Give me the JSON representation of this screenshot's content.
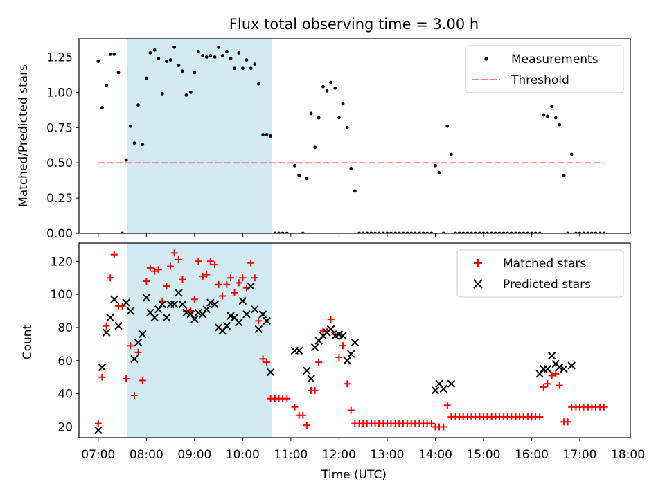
{
  "figure": {
    "title": "Flux total observing time = 3.00 h",
    "xlabel": "Time (UTC)",
    "span_color": "#add8e6",
    "span_label_start": "07:36",
    "span_label_end": "10:36"
  },
  "chart_data": [
    {
      "type": "scatter",
      "ylabel": "Matched/Predicted stars",
      "xlim": [
        6.6,
        18.05
      ],
      "ylim": [
        0,
        1.38
      ],
      "yticks": [
        "0.00",
        "0.25",
        "0.50",
        "0.75",
        "1.00",
        "1.25"
      ],
      "ytick_values": [
        0,
        0.25,
        0.5,
        0.75,
        1.0,
        1.25
      ],
      "legend_placement": "top-right",
      "threshold": {
        "name": "Threshold",
        "value": 0.5,
        "x_range": [
          7.0,
          17.5
        ],
        "color": "#ff8080"
      },
      "series": [
        {
          "name": "Measurements",
          "color": "#000000",
          "x": [
            7.0,
            7.08,
            7.17,
            7.25,
            7.33,
            7.42,
            7.5,
            7.58,
            7.67,
            7.75,
            7.83,
            7.92,
            8.0,
            8.08,
            8.17,
            8.25,
            8.33,
            8.42,
            8.5,
            8.58,
            8.67,
            8.75,
            8.83,
            8.92,
            9.0,
            9.08,
            9.17,
            9.25,
            9.33,
            9.42,
            9.5,
            9.58,
            9.67,
            9.75,
            9.83,
            9.92,
            10.0,
            10.08,
            10.17,
            10.25,
            10.33,
            10.42,
            10.5,
            10.58,
            10.67,
            10.75,
            10.83,
            10.92,
            11.08,
            11.17,
            11.25,
            11.33,
            11.42,
            11.5,
            11.58,
            11.67,
            11.75,
            11.83,
            11.92,
            12.0,
            12.08,
            12.17,
            12.25,
            12.33,
            12.42,
            12.5,
            12.58,
            12.67,
            12.75,
            12.83,
            12.92,
            13.0,
            13.08,
            13.17,
            13.25,
            13.33,
            13.42,
            13.5,
            13.58,
            13.67,
            13.75,
            13.83,
            13.92,
            14.0,
            14.08,
            14.17,
            14.25,
            14.33,
            14.42,
            14.5,
            14.58,
            14.67,
            14.75,
            14.83,
            14.92,
            15.0,
            15.08,
            15.17,
            15.25,
            15.33,
            15.42,
            15.5,
            15.58,
            15.67,
            15.75,
            15.83,
            15.92,
            16.0,
            16.08,
            16.17,
            16.25,
            16.33,
            16.42,
            16.5,
            16.58,
            16.67,
            16.75,
            16.83,
            16.92,
            17.0,
            17.08,
            17.17,
            17.25,
            17.33,
            17.42,
            17.5
          ],
          "y": [
            1.22,
            0.89,
            1.05,
            1.27,
            1.27,
            1.14,
            0.0,
            0.52,
            0.76,
            0.64,
            0.91,
            0.63,
            1.1,
            1.28,
            1.3,
            1.24,
            0.99,
            1.22,
            1.23,
            1.32,
            1.19,
            1.15,
            0.98,
            1.0,
            1.14,
            1.29,
            1.26,
            1.25,
            1.26,
            1.25,
            1.32,
            1.26,
            1.29,
            1.24,
            1.17,
            1.28,
            1.17,
            1.23,
            1.17,
            1.2,
            1.06,
            0.7,
            0.7,
            0.69,
            0.0,
            0.0,
            0.0,
            0.0,
            0.48,
            0.41,
            0.0,
            0.39,
            0.85,
            0.61,
            0.82,
            1.04,
            1.01,
            1.07,
            1.03,
            0.82,
            0.92,
            0.75,
            0.46,
            0.3,
            0.0,
            0.0,
            0.0,
            0.0,
            0.0,
            0.0,
            0.0,
            0.0,
            0.0,
            0.0,
            0.0,
            0.0,
            0.0,
            0.0,
            0.0,
            0.0,
            0.0,
            0.0,
            0.0,
            0.48,
            0.43,
            0.0,
            0.76,
            0.56,
            0.0,
            0.0,
            0.0,
            0.0,
            0.0,
            0.0,
            0.0,
            0.0,
            0.0,
            0.0,
            0.0,
            0.0,
            0.0,
            0.0,
            0.0,
            0.0,
            0.0,
            0.0,
            0.0,
            0.0,
            0.0,
            0.0,
            0.84,
            0.83,
            0.9,
            0.82,
            0.77,
            0.41,
            0.0,
            0.56,
            0.0,
            0.0,
            0.0,
            0.0,
            0.0,
            0.0,
            0.0,
            0.0
          ]
        }
      ]
    },
    {
      "type": "scatter",
      "ylabel": "Count",
      "xlim": [
        6.6,
        18.05
      ],
      "ylim": [
        13.5,
        131
      ],
      "yticks": [
        "20",
        "40",
        "60",
        "80",
        "100",
        "120"
      ],
      "ytick_values": [
        20,
        40,
        60,
        80,
        100,
        120
      ],
      "xticks": [
        "07:00",
        "08:00",
        "09:00",
        "10:00",
        "11:00",
        "12:00",
        "13:00",
        "14:00",
        "15:00",
        "16:00",
        "17:00",
        "18:00"
      ],
      "xtick_values": [
        7,
        8,
        9,
        10,
        11,
        12,
        13,
        14,
        15,
        16,
        17,
        18
      ],
      "legend_placement": "top-right",
      "series": [
        {
          "name": "Matched stars",
          "marker": "+",
          "color": "#ff0000",
          "x": [
            7.0,
            7.08,
            7.17,
            7.25,
            7.33,
            7.42,
            7.5,
            7.58,
            7.67,
            7.75,
            7.83,
            7.92,
            8.0,
            8.08,
            8.17,
            8.25,
            8.33,
            8.42,
            8.5,
            8.58,
            8.67,
            8.75,
            8.83,
            8.92,
            9.0,
            9.08,
            9.17,
            9.25,
            9.33,
            9.42,
            9.5,
            9.58,
            9.67,
            9.75,
            9.83,
            9.92,
            10.0,
            10.08,
            10.17,
            10.25,
            10.33,
            10.42,
            10.5,
            10.58,
            10.67,
            10.75,
            10.83,
            10.92,
            11.08,
            11.17,
            11.25,
            11.33,
            11.42,
            11.5,
            11.58,
            11.67,
            11.75,
            11.83,
            11.92,
            12.0,
            12.08,
            12.17,
            12.25,
            12.33,
            12.42,
            12.5,
            12.58,
            12.67,
            12.75,
            12.83,
            12.92,
            13.0,
            13.08,
            13.17,
            13.25,
            13.33,
            13.42,
            13.5,
            13.58,
            13.67,
            13.75,
            13.83,
            13.92,
            14.0,
            14.08,
            14.17,
            14.25,
            14.33,
            14.42,
            14.5,
            14.58,
            14.67,
            14.75,
            14.83,
            14.92,
            15.0,
            15.08,
            15.17,
            15.25,
            15.33,
            15.42,
            15.5,
            15.58,
            15.67,
            15.75,
            15.83,
            15.92,
            16.0,
            16.08,
            16.17,
            16.25,
            16.33,
            16.42,
            16.5,
            16.58,
            16.67,
            16.75,
            16.83,
            16.92,
            17.0,
            17.08,
            17.17,
            17.25,
            17.33,
            17.42,
            17.5
          ],
          "y": [
            22,
            50,
            81,
            110,
            124,
            93,
            93,
            49,
            69,
            39,
            65,
            48,
            108,
            116,
            114,
            115,
            96,
            105,
            117,
            125,
            121,
            109,
            90,
            90,
            97,
            120,
            111,
            112,
            120,
            118,
            106,
            99,
            106,
            110,
            101,
            107,
            110,
            104,
            119,
            110,
            84,
            61,
            59,
            37,
            37,
            37,
            37,
            37,
            32,
            27,
            27,
            21,
            42,
            42,
            59,
            78,
            78,
            85,
            76,
            62,
            69,
            46,
            30,
            22,
            22,
            22,
            22,
            22,
            22,
            22,
            22,
            22,
            22,
            22,
            22,
            22,
            22,
            22,
            22,
            22,
            22,
            22,
            22,
            20,
            20,
            20,
            33,
            26,
            26,
            26,
            26,
            26,
            26,
            26,
            26,
            26,
            26,
            26,
            26,
            26,
            26,
            26,
            26,
            26,
            26,
            26,
            26,
            26,
            26,
            26,
            44,
            46,
            51,
            52,
            45,
            23,
            23,
            32,
            32,
            32,
            32,
            32,
            32,
            32,
            32,
            32
          ]
        },
        {
          "name": "Predicted stars",
          "marker": "x",
          "color": "#000000",
          "x": [
            7.0,
            7.08,
            7.17,
            7.25,
            7.33,
            7.42,
            7.58,
            7.67,
            7.75,
            7.83,
            7.92,
            8.0,
            8.08,
            8.17,
            8.25,
            8.33,
            8.42,
            8.5,
            8.58,
            8.67,
            8.75,
            8.83,
            8.92,
            9.0,
            9.08,
            9.17,
            9.25,
            9.33,
            9.42,
            9.5,
            9.58,
            9.67,
            9.75,
            9.83,
            9.92,
            10.0,
            10.08,
            10.17,
            10.25,
            10.33,
            10.42,
            10.5,
            10.58,
            11.08,
            11.17,
            11.33,
            11.42,
            11.5,
            11.58,
            11.67,
            11.75,
            11.83,
            11.92,
            12.0,
            12.08,
            12.17,
            12.25,
            12.33,
            14.0,
            14.08,
            14.17,
            14.33,
            16.17,
            16.25,
            16.33,
            16.42,
            16.5,
            16.58,
            16.67,
            16.83
          ],
          "y": [
            18,
            56,
            77,
            86,
            97,
            81,
            95,
            90,
            61,
            71,
            76,
            98,
            89,
            86,
            91,
            94,
            86,
            94,
            94,
            101,
            94,
            89,
            88,
            85,
            89,
            88,
            91,
            95,
            94,
            80,
            78,
            81,
            87,
            86,
            83,
            96,
            88,
            105,
            91,
            79,
            88,
            84,
            53,
            66,
            66,
            54,
            49,
            68,
            72,
            75,
            77,
            79,
            75,
            76,
            75,
            60,
            64,
            71,
            42,
            46,
            43,
            46,
            52,
            55,
            55,
            63,
            58,
            56,
            55,
            57
          ]
        }
      ]
    }
  ]
}
